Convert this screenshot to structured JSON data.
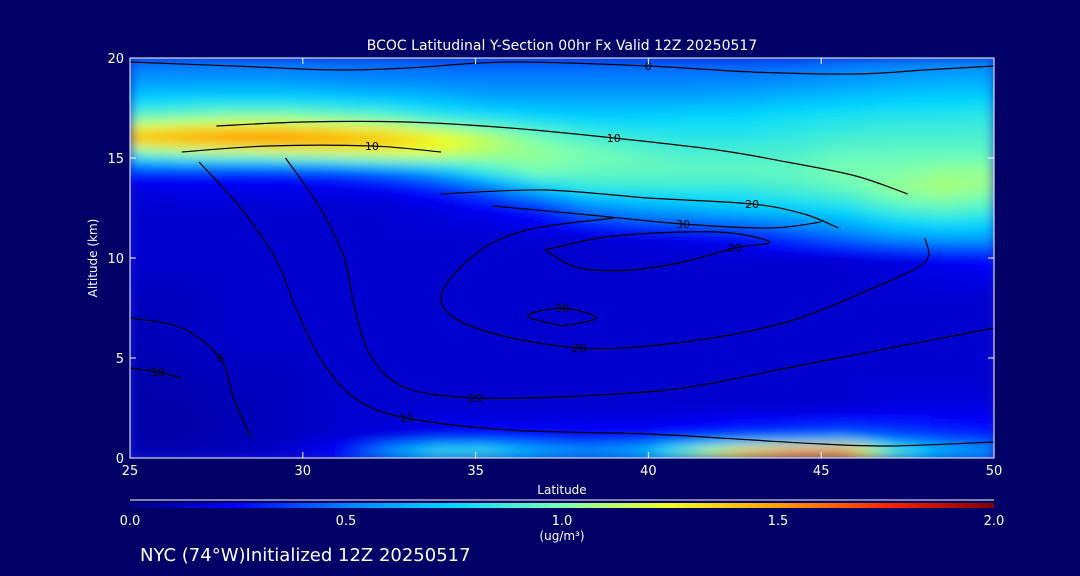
{
  "chart_data": {
    "type": "heatmap",
    "title": "BCOC Latitudinal Y-Section 00hr  Fx Valid 12Z 20250517",
    "xlabel": "Latitude",
    "ylabel": "Altitude (km)",
    "xlim": [
      25,
      50
    ],
    "ylim": [
      0,
      20
    ],
    "x_ticks": [
      "25",
      "30",
      "35",
      "40",
      "45",
      "50"
    ],
    "y_ticks": [
      "0",
      "5",
      "10",
      "15",
      "20"
    ],
    "colorbar": {
      "ticks": [
        "0.0",
        "0.5",
        "1.0",
        "1.5",
        "2.0"
      ],
      "range": [
        0.0,
        2.0
      ],
      "units": "(ug/m³)"
    },
    "bands": [
      {
        "alt": 20.0,
        "values": [
          0.45,
          0.45,
          0.45,
          0.45,
          0.45,
          0.45,
          0.42,
          0.4,
          0.4,
          0.4,
          0.4,
          0.4,
          0.4,
          0.4,
          0.45,
          0.48,
          0.5,
          0.5
        ]
      },
      {
        "alt": 19.0,
        "values": [
          0.55,
          0.55,
          0.55,
          0.55,
          0.52,
          0.5,
          0.5,
          0.5,
          0.5,
          0.5,
          0.5,
          0.5,
          0.5,
          0.52,
          0.55,
          0.58,
          0.6,
          0.6
        ]
      },
      {
        "alt": 18.0,
        "values": [
          0.7,
          0.72,
          0.72,
          0.72,
          0.7,
          0.68,
          0.65,
          0.6,
          0.6,
          0.6,
          0.6,
          0.6,
          0.62,
          0.65,
          0.68,
          0.7,
          0.72,
          0.72
        ]
      },
      {
        "alt": 17.0,
        "values": [
          0.95,
          1.0,
          1.05,
          1.05,
          1.0,
          0.95,
          0.85,
          0.8,
          0.75,
          0.72,
          0.72,
          0.75,
          0.75,
          0.78,
          0.8,
          0.82,
          0.82,
          0.85
        ]
      },
      {
        "alt": 16.0,
        "values": [
          1.5,
          1.55,
          1.6,
          1.6,
          1.55,
          1.45,
          1.3,
          1.15,
          1.0,
          0.9,
          0.85,
          0.82,
          0.82,
          0.85,
          0.88,
          0.9,
          0.9,
          0.9
        ]
      },
      {
        "alt": 15.2,
        "values": [
          0.9,
          1.0,
          1.05,
          1.1,
          1.15,
          1.2,
          1.2,
          1.1,
          1.05,
          1.0,
          0.95,
          0.9,
          0.9,
          0.9,
          0.95,
          0.95,
          0.95,
          0.95
        ]
      },
      {
        "alt": 14.3,
        "values": [
          0.3,
          0.3,
          0.3,
          0.3,
          0.35,
          0.45,
          0.6,
          0.85,
          1.0,
          0.95,
          0.95,
          0.95,
          0.95,
          0.95,
          1.0,
          1.0,
          1.05,
          1.05
        ]
      },
      {
        "alt": 13.5,
        "values": [
          0.18,
          0.2,
          0.2,
          0.2,
          0.2,
          0.22,
          0.3,
          0.45,
          0.7,
          0.85,
          0.85,
          0.85,
          0.85,
          0.9,
          0.95,
          1.05,
          1.1,
          1.05
        ]
      },
      {
        "alt": 12.5,
        "values": [
          0.15,
          0.15,
          0.15,
          0.15,
          0.15,
          0.15,
          0.18,
          0.22,
          0.3,
          0.5,
          0.6,
          0.65,
          0.7,
          0.72,
          0.78,
          0.9,
          0.95,
          0.9
        ]
      },
      {
        "alt": 11.0,
        "values": [
          0.15,
          0.15,
          0.15,
          0.15,
          0.15,
          0.15,
          0.15,
          0.15,
          0.15,
          0.15,
          0.17,
          0.2,
          0.25,
          0.35,
          0.45,
          0.55,
          0.6,
          0.6
        ]
      },
      {
        "alt": 10.0,
        "values": [
          0.15,
          0.15,
          0.15,
          0.15,
          0.15,
          0.15,
          0.15,
          0.15,
          0.15,
          0.15,
          0.15,
          0.15,
          0.15,
          0.15,
          0.15,
          0.18,
          0.22,
          0.25
        ]
      },
      {
        "alt": 8.0,
        "values": [
          0.12,
          0.12,
          0.15,
          0.15,
          0.15,
          0.15,
          0.15,
          0.15,
          0.15,
          0.15,
          0.15,
          0.15,
          0.15,
          0.15,
          0.15,
          0.15,
          0.15,
          0.15
        ]
      },
      {
        "alt": 6.0,
        "values": [
          0.1,
          0.12,
          0.15,
          0.15,
          0.15,
          0.15,
          0.15,
          0.15,
          0.15,
          0.15,
          0.15,
          0.15,
          0.15,
          0.15,
          0.15,
          0.15,
          0.15,
          0.15
        ]
      },
      {
        "alt": 4.0,
        "values": [
          0.08,
          0.1,
          0.12,
          0.12,
          0.15,
          0.15,
          0.15,
          0.15,
          0.15,
          0.15,
          0.15,
          0.15,
          0.15,
          0.15,
          0.15,
          0.15,
          0.15,
          0.15
        ]
      },
      {
        "alt": 2.5,
        "values": [
          0.08,
          0.08,
          0.1,
          0.12,
          0.15,
          0.15,
          0.15,
          0.15,
          0.15,
          0.15,
          0.15,
          0.15,
          0.15,
          0.15,
          0.15,
          0.18,
          0.18,
          0.18
        ]
      },
      {
        "alt": 1.0,
        "values": [
          0.08,
          0.08,
          0.1,
          0.12,
          0.15,
          0.18,
          0.22,
          0.25,
          0.25,
          0.25,
          0.25,
          0.3,
          0.35,
          0.4,
          0.45,
          0.4,
          0.35,
          0.3
        ]
      },
      {
        "alt": 0.3,
        "values": [
          0.1,
          0.1,
          0.12,
          0.15,
          0.25,
          0.6,
          0.9,
          0.9,
          0.7,
          0.6,
          0.7,
          1.1,
          1.5,
          1.7,
          1.8,
          1.0,
          0.7,
          0.6
        ]
      },
      {
        "alt": 0.0,
        "values": [
          0.1,
          0.1,
          0.12,
          0.15,
          0.2,
          0.4,
          0.6,
          0.6,
          0.5,
          0.45,
          0.5,
          0.8,
          1.2,
          1.4,
          1.3,
          0.8,
          0.5,
          0.4
        ]
      }
    ],
    "contours": [
      {
        "label": "0",
        "points": [
          [
            25,
            19.8
          ],
          [
            28,
            19.6
          ],
          [
            31,
            19.4
          ],
          [
            33,
            19.5
          ],
          [
            36,
            19.8
          ],
          [
            40,
            19.6
          ],
          [
            43,
            19.3
          ],
          [
            46,
            19.2
          ],
          [
            48,
            19.4
          ],
          [
            50,
            19.6
          ]
        ]
      },
      {
        "label": "10",
        "points": [
          [
            27.5,
            16.6
          ],
          [
            30,
            16.8
          ],
          [
            33,
            16.8
          ],
          [
            36,
            16.5
          ],
          [
            39,
            16.0
          ],
          [
            42,
            15.4
          ],
          [
            44,
            14.8
          ],
          [
            46,
            14.1
          ],
          [
            47.5,
            13.2
          ]
        ]
      },
      {
        "label": "10",
        "points": [
          [
            26.5,
            15.3
          ],
          [
            29,
            15.6
          ],
          [
            32,
            15.6
          ],
          [
            34,
            15.3
          ]
        ]
      },
      {
        "label": "20",
        "points": [
          [
            34,
            13.2
          ],
          [
            37,
            13.4
          ],
          [
            40,
            13.0
          ],
          [
            43,
            12.7
          ],
          [
            44.5,
            12.2
          ],
          [
            45.5,
            11.5
          ]
        ]
      },
      {
        "label": "30",
        "points": [
          [
            35.5,
            12.6
          ],
          [
            38,
            12.2
          ],
          [
            41,
            11.7
          ],
          [
            43.5,
            11.5
          ],
          [
            45,
            11.8
          ]
        ]
      },
      {
        "label": "20",
        "points": [
          [
            37,
            10.4
          ],
          [
            38,
            9.5
          ],
          [
            39.5,
            9.4
          ],
          [
            41,
            9.8
          ],
          [
            42.5,
            10.5
          ],
          [
            43.5,
            10.8
          ],
          [
            42,
            11.3
          ],
          [
            39,
            11.1
          ],
          [
            37,
            10.4
          ]
        ]
      },
      {
        "label": "20",
        "points": [
          [
            39,
            12.0
          ],
          [
            36.5,
            11.4
          ],
          [
            35,
            10.2
          ],
          [
            34,
            8.0
          ],
          [
            35,
            6.5
          ],
          [
            38,
            5.5
          ],
          [
            41,
            5.8
          ],
          [
            44,
            6.8
          ],
          [
            46.5,
            8.5
          ],
          [
            48,
            9.8
          ],
          [
            48,
            11.0
          ]
        ]
      },
      {
        "label": "30",
        "points": [
          [
            37.5,
            6.6
          ],
          [
            38.5,
            7.0
          ],
          [
            37.5,
            7.5
          ],
          [
            36.5,
            7.1
          ],
          [
            37.5,
            6.6
          ]
        ]
      },
      {
        "label": "20",
        "points": [
          [
            29.5,
            15.0
          ],
          [
            30.5,
            12.5
          ],
          [
            31.2,
            10.0
          ],
          [
            31.5,
            7.5
          ],
          [
            32,
            5.0
          ],
          [
            33,
            3.5
          ],
          [
            35,
            3.0
          ],
          [
            38,
            3.1
          ],
          [
            41,
            3.5
          ],
          [
            44,
            4.5
          ],
          [
            47,
            5.5
          ],
          [
            50,
            6.5
          ]
        ]
      },
      {
        "label": "10",
        "points": [
          [
            27,
            14.8
          ],
          [
            28.2,
            12.5
          ],
          [
            29.2,
            10.0
          ],
          [
            29.8,
            7.5
          ],
          [
            30.5,
            5.0
          ],
          [
            31.5,
            3.0
          ],
          [
            33,
            2.0
          ],
          [
            36,
            1.4
          ],
          [
            40,
            1.2
          ],
          [
            43,
            0.9
          ],
          [
            45,
            0.7
          ],
          [
            47,
            0.6
          ],
          [
            50,
            0.8
          ]
        ]
      },
      {
        "label": "0",
        "points": [
          [
            25,
            7.0
          ],
          [
            26.5,
            6.5
          ],
          [
            27.6,
            5.0
          ],
          [
            28,
            3.0
          ],
          [
            28.5,
            1.0
          ]
        ]
      },
      {
        "label": "10",
        "points": [
          [
            25,
            4.5
          ],
          [
            25.8,
            4.3
          ],
          [
            26.5,
            4.0
          ]
        ]
      }
    ]
  },
  "footer": {
    "location": "NYC (74°W)Initialized 12Z 20250517"
  }
}
